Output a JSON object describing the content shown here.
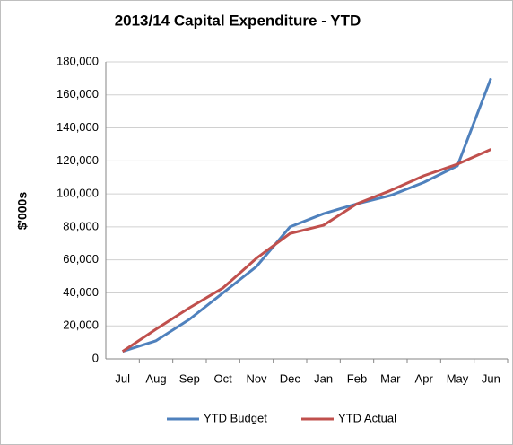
{
  "chart_data": {
    "type": "line",
    "title": "2013/14 Capital Expenditure - YTD",
    "y_label": "$'000s",
    "categories": [
      "Jul",
      "Aug",
      "Sep",
      "Oct",
      "Nov",
      "Dec",
      "Jan",
      "Feb",
      "Mar",
      "Apr",
      "May",
      "Jun"
    ],
    "series": [
      {
        "name": "YTD Budget",
        "color": "#4f81bd",
        "values": [
          4500,
          11000,
          24000,
          40000,
          56000,
          80000,
          88000,
          94000,
          99000,
          107000,
          117000,
          170000
        ]
      },
      {
        "name": "YTD Actual",
        "color": "#c0504d",
        "values": [
          4500,
          18000,
          31000,
          43000,
          61000,
          76000,
          81000,
          94000,
          102000,
          111000,
          118000,
          127000
        ]
      }
    ],
    "ylim": [
      0,
      180000
    ],
    "yticks": [
      0,
      {
        "value": 20000,
        "label": "20,000"
      },
      {
        "value": 40000,
        "label": "40,000"
      },
      {
        "value": 60000,
        "label": "60,000"
      },
      {
        "value": 80000,
        "label": "80,000"
      },
      {
        "value": 100000,
        "label": "100,000"
      },
      {
        "value": 120000,
        "label": "120,000"
      },
      {
        "value": 140000,
        "label": "140,000"
      },
      {
        "value": 160000,
        "label": "160,000"
      },
      {
        "value": 180000,
        "label": "180,000"
      }
    ],
    "grid": true,
    "legend": "bottom"
  }
}
